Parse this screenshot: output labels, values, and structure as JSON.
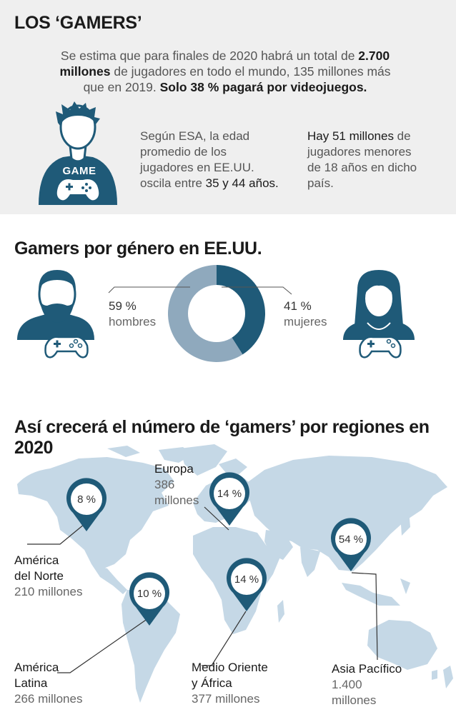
{
  "title": "LOS ‘GAMERS’",
  "intro": {
    "p1": "Se estima que para finales de 2020 habrá un total de ",
    "b1": "2.700 millones",
    "p2": " de jugadores en todo el mundo, 135 millones más que en 2019. ",
    "b2": "Solo 38 % pagará por videojuegos."
  },
  "gamer_badge": "GAME",
  "esa": {
    "p1": "Según ESA, la edad promedio de los jugadores en EE.UU. oscila entre ",
    "b1": "35 y 44 años."
  },
  "minors": {
    "b1": "Hay 51 millones",
    "p1": " de jugadores menores de 18 años en dicho país."
  },
  "gender": {
    "heading": "Gamers por género en EE.UU.",
    "men_pct": "59 %",
    "men_label": "hombres",
    "women_pct": "41 %",
    "women_label": "mujeres",
    "men_value": 59,
    "women_value": 41,
    "colors": {
      "men": "#8fa9bd",
      "women": "#1f5a78"
    }
  },
  "regions": {
    "heading": "Así crecerá el número de ‘gamers’ por regiones en 2020",
    "items": [
      {
        "name1": "América",
        "name2": "del Norte",
        "value": "210 millones",
        "pct": "8 %"
      },
      {
        "name1": "América",
        "name2": "Latina",
        "value": "266 millones",
        "pct": "10 %"
      },
      {
        "name1": "Europa",
        "value1": "386",
        "value2": "millones",
        "pct": "14 %"
      },
      {
        "name1": "Medio Oriente",
        "name2": "y África",
        "value": "377 millones",
        "pct": "14 %"
      },
      {
        "name1": "Asia Pacífico",
        "value1": "1.400",
        "value2": "millones",
        "pct": "54 %"
      }
    ],
    "colors": {
      "map": "#c5d8e6",
      "pin": "#1f5a78"
    }
  }
}
